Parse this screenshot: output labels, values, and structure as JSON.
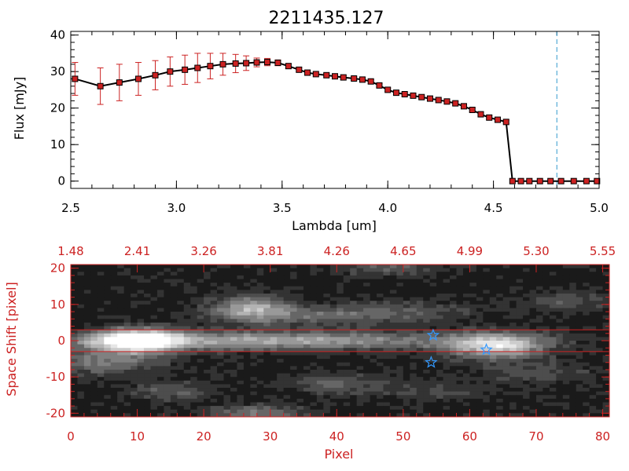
{
  "figure_title": "2211435.127",
  "colors": {
    "axis_top": "#000000",
    "axis_bottom": "#cc2222",
    "marker": "#cc2222",
    "error_bar": "#cc2222",
    "line": "#000000",
    "cutoff_line": "#3399cc",
    "star": "#3399ff"
  },
  "chart_data": [
    {
      "type": "line",
      "title": "2211435.127",
      "xlabel": "Lambda [um]",
      "ylabel": "Flux [mJy]",
      "xlim": [
        2.5,
        5.0
      ],
      "ylim": [
        -2,
        41
      ],
      "x_ticks": [
        "2.5",
        "3.0",
        "3.5",
        "4.0",
        "4.5",
        "5.0"
      ],
      "y_ticks": [
        "0",
        "10",
        "20",
        "30",
        "40"
      ],
      "vertical_line_x": 4.8,
      "series": [
        {
          "x": [
            2.52,
            2.64,
            2.73,
            2.82,
            2.9,
            2.97,
            3.04,
            3.1,
            3.16,
            3.22,
            3.28,
            3.33,
            3.38,
            3.43,
            3.48,
            3.53,
            3.58,
            3.62,
            3.66,
            3.71,
            3.75,
            3.79,
            3.84,
            3.88,
            3.92,
            3.96,
            4.0,
            4.04,
            4.08,
            4.12,
            4.16,
            4.2,
            4.24,
            4.28,
            4.32,
            4.36,
            4.4,
            4.44,
            4.48,
            4.52,
            4.56,
            4.59,
            4.63,
            4.67,
            4.72,
            4.77,
            4.82,
            4.88,
            4.94,
            4.99
          ],
          "y": [
            28,
            26,
            27,
            28,
            29,
            30,
            30.5,
            31,
            31.5,
            32,
            32.2,
            32.3,
            32.5,
            32.6,
            32.4,
            31.5,
            30.5,
            29.7,
            29.3,
            29.0,
            28.7,
            28.4,
            28.1,
            27.8,
            27.3,
            26.2,
            25.0,
            24.2,
            23.8,
            23.4,
            23.0,
            22.6,
            22.2,
            21.8,
            21.3,
            20.5,
            19.5,
            18.3,
            17.4,
            16.8,
            16.2,
            0,
            0,
            0,
            0,
            0,
            0,
            0,
            0,
            0
          ],
          "yerr": [
            4.5,
            5,
            5,
            4.5,
            4,
            4,
            4,
            4,
            3.5,
            3,
            2.5,
            2,
            1.2,
            1,
            0.8,
            0.7,
            0.6,
            0.5,
            0.5,
            0.5,
            0.5,
            0.5,
            0.5,
            0.5,
            0.5,
            0.5,
            0.5,
            0.5,
            0.5,
            0.5,
            0.5,
            0.5,
            0.5,
            0.5,
            0.5,
            0.5,
            0.5,
            0.5,
            0.5,
            0.5,
            0.5,
            0,
            0,
            0,
            0,
            0,
            0,
            0,
            0,
            0
          ]
        }
      ]
    },
    {
      "type": "heatmap",
      "xlabel": "Pixel",
      "ylabel": "Space Shift [pixel]",
      "xlim": [
        0,
        81
      ],
      "ylim": [
        -21,
        21
      ],
      "x_ticks": [
        "0",
        "10",
        "20",
        "30",
        "40",
        "50",
        "60",
        "70",
        "80"
      ],
      "y_ticks": [
        "-20",
        "-10",
        "0",
        "10",
        "20"
      ],
      "top_ticks": [
        "1.48",
        "2.41",
        "3.26",
        "3.81",
        "4.26",
        "4.65",
        "4.99",
        "5.30",
        "5.55"
      ],
      "extraction_band": [
        -3,
        3
      ],
      "blobs": [
        {
          "x": 10,
          "y": 0,
          "sx": 4.5,
          "sy": 2.2,
          "amp": 1.0
        },
        {
          "x": 30,
          "y": 0,
          "sx": 22,
          "sy": 1.8,
          "amp": 0.55
        },
        {
          "x": 64,
          "y": -1.5,
          "sx": 5,
          "sy": 2.5,
          "amp": 0.7
        },
        {
          "x": 27,
          "y": 9,
          "sx": 4,
          "sy": 2.5,
          "amp": 0.5
        },
        {
          "x": 36,
          "y": 7,
          "sx": 9,
          "sy": 2,
          "amp": 0.25
        },
        {
          "x": 50,
          "y": 8,
          "sx": 8,
          "sy": 2,
          "amp": 0.2
        },
        {
          "x": 75,
          "y": 11,
          "sx": 5,
          "sy": 2,
          "amp": 0.2
        },
        {
          "x": 5,
          "y": -6,
          "sx": 6,
          "sy": 2.5,
          "amp": 0.35
        },
        {
          "x": 15,
          "y": -14,
          "sx": 4,
          "sy": 2,
          "amp": 0.25
        },
        {
          "x": 28,
          "y": -20,
          "sx": 5,
          "sy": 1.5,
          "amp": 0.35
        },
        {
          "x": 40,
          "y": -12,
          "sx": 5,
          "sy": 2,
          "amp": 0.25
        },
        {
          "x": 48,
          "y": 20,
          "sx": 6,
          "sy": 1.5,
          "amp": 0.25
        },
        {
          "x": 70,
          "y": -9,
          "sx": 6,
          "sy": 2,
          "amp": 0.2
        },
        {
          "x": 55,
          "y": -14,
          "sx": 6,
          "sy": 2,
          "amp": 0.15
        }
      ],
      "stars": [
        {
          "x": 54.5,
          "y": 1.5
        },
        {
          "x": 54.2,
          "y": -6
        },
        {
          "x": 62.5,
          "y": -2.5
        }
      ]
    }
  ]
}
